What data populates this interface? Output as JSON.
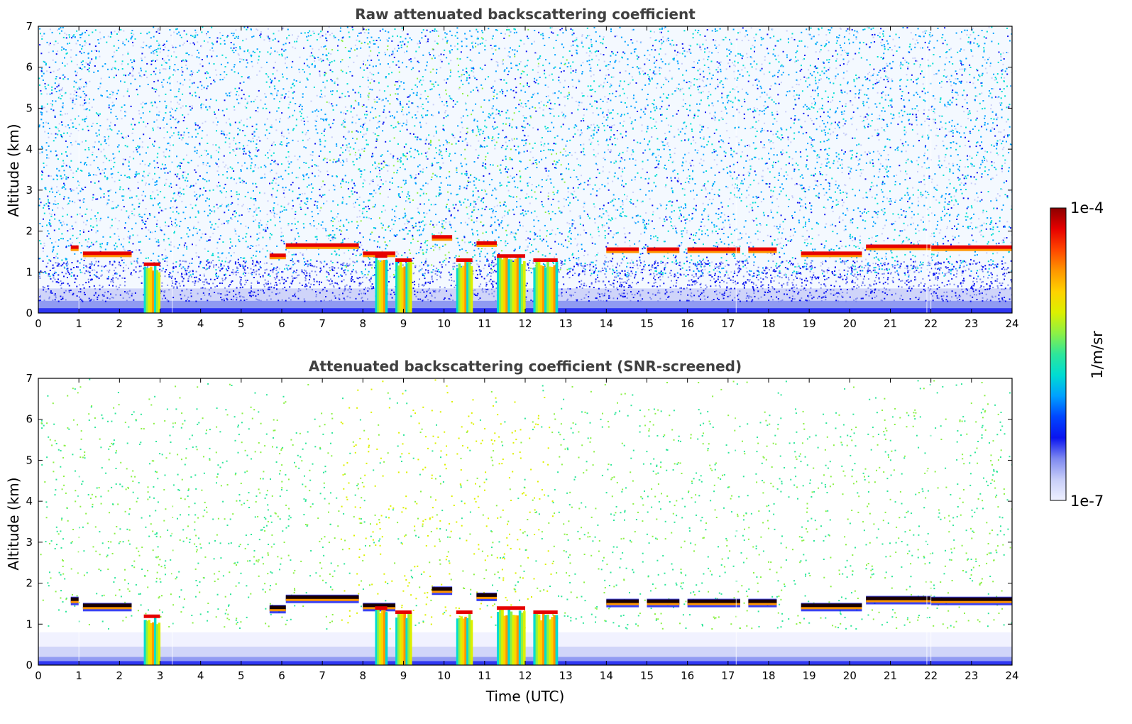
{
  "colors": {
    "colormap": [
      "#eef0ff",
      "#c8cef8",
      "#7e89f0",
      "#0a14f0",
      "#0046ff",
      "#00a0ff",
      "#00dcd2",
      "#2ee69a",
      "#8cf046",
      "#dcf000",
      "#ffd200",
      "#ff9600",
      "#ff4600",
      "#e60000",
      "#8c0000"
    ],
    "axis": "#000000",
    "title": "#404040"
  },
  "chart_data": [
    {
      "type": "heatmap",
      "title": "Raw attenuated backscattering coefficient",
      "xlabel": "",
      "ylabel": "Altitude (km)",
      "xlim": [
        0,
        24
      ],
      "ylim": [
        0,
        7
      ],
      "x_ticks": [
        "0",
        "1",
        "2",
        "3",
        "4",
        "5",
        "6",
        "7",
        "8",
        "9",
        "10",
        "11",
        "12",
        "13",
        "14",
        "15",
        "16",
        "17",
        "18",
        "19",
        "20",
        "21",
        "22",
        "23",
        "24"
      ],
      "y_ticks": [
        "0",
        "1",
        "2",
        "3",
        "4",
        "5",
        "6",
        "7"
      ],
      "cloud_layers": [
        {
          "t_start": 0.8,
          "t_end": 1.0,
          "altitude_km": 1.6
        },
        {
          "t_start": 1.1,
          "t_end": 2.3,
          "altitude_km": 1.45
        },
        {
          "t_start": 5.7,
          "t_end": 6.1,
          "altitude_km": 1.4
        },
        {
          "t_start": 6.1,
          "t_end": 7.9,
          "altitude_km": 1.65
        },
        {
          "t_start": 8.0,
          "t_end": 8.8,
          "altitude_km": 1.45
        },
        {
          "t_start": 9.7,
          "t_end": 10.2,
          "altitude_km": 1.85
        },
        {
          "t_start": 10.8,
          "t_end": 11.3,
          "altitude_km": 1.7
        },
        {
          "t_start": 14.0,
          "t_end": 14.8,
          "altitude_km": 1.55
        },
        {
          "t_start": 15.0,
          "t_end": 15.8,
          "altitude_km": 1.55
        },
        {
          "t_start": 16.0,
          "t_end": 17.3,
          "altitude_km": 1.55
        },
        {
          "t_start": 17.5,
          "t_end": 18.2,
          "altitude_km": 1.55
        },
        {
          "t_start": 18.8,
          "t_end": 20.3,
          "altitude_km": 1.45
        },
        {
          "t_start": 20.4,
          "t_end": 22.0,
          "altitude_km": 1.62
        },
        {
          "t_start": 22.0,
          "t_end": 24.0,
          "altitude_km": 1.6
        }
      ],
      "precipitation": [
        {
          "t_start": 2.6,
          "t_end": 3.0,
          "top_km": 1.2
        },
        {
          "t_start": 8.3,
          "t_end": 8.6,
          "top_km": 1.4
        },
        {
          "t_start": 8.8,
          "t_end": 9.2,
          "top_km": 1.3
        },
        {
          "t_start": 10.3,
          "t_end": 10.7,
          "top_km": 1.3
        },
        {
          "t_start": 11.3,
          "t_end": 12.0,
          "top_km": 1.4
        },
        {
          "t_start": 12.2,
          "t_end": 12.8,
          "top_km": 1.3
        }
      ]
    },
    {
      "type": "heatmap",
      "title": "Attenuated backscattering coefficient (SNR-screened)",
      "xlabel": "Time (UTC)",
      "ylabel": "Altitude (km)",
      "xlim": [
        0,
        24
      ],
      "ylim": [
        0,
        7
      ],
      "x_ticks": [
        "0",
        "1",
        "2",
        "3",
        "4",
        "5",
        "6",
        "7",
        "8",
        "9",
        "10",
        "11",
        "12",
        "13",
        "14",
        "15",
        "16",
        "17",
        "18",
        "19",
        "20",
        "21",
        "22",
        "23",
        "24"
      ],
      "y_ticks": [
        "0",
        "1",
        "2",
        "3",
        "4",
        "5",
        "6",
        "7"
      ]
    }
  ],
  "colorbar": {
    "max_label": "1e-4",
    "min_label": "1e-7",
    "unit_label": "1/m/sr",
    "range": [
      1e-07,
      0.0001
    ],
    "scale": "log"
  }
}
